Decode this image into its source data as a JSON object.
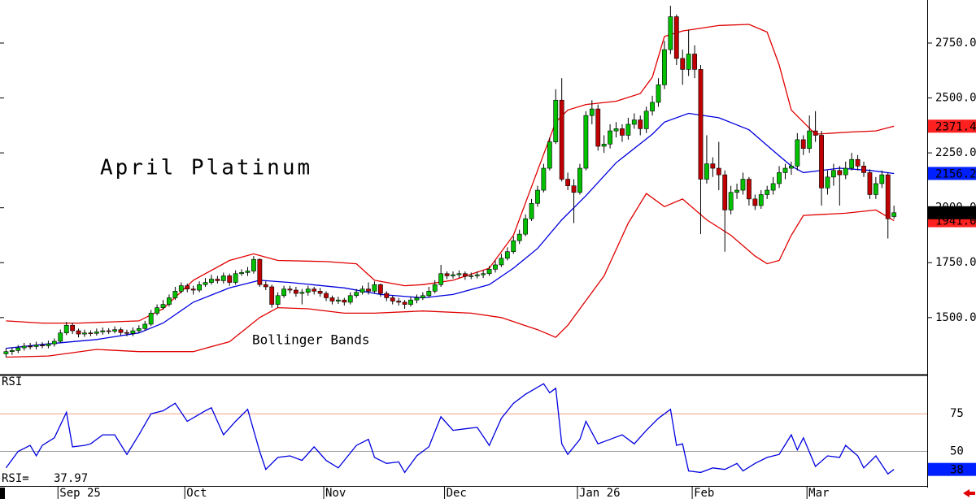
{
  "chart_data": [
    {
      "type": "candlestick",
      "title": "April Platinum",
      "annotation": "Bollinger Bands",
      "xlim": [
        -1,
        152.5
      ],
      "ylim": [
        1244,
        2946
      ],
      "yticks": [
        {
          "value": 2750,
          "label": "2750.0"
        },
        {
          "value": 2500,
          "label": "2500.0"
        },
        {
          "value": 2250,
          "label": "2250.0"
        },
        {
          "value": 2000,
          "label": "2000.0"
        },
        {
          "value": 1750,
          "label": "1750.0"
        },
        {
          "value": 1500,
          "label": "1500.0"
        }
      ],
      "up_color": "#00c000",
      "down_color": "#c00000",
      "open": [
        1335,
        1345,
        1350,
        1362,
        1370,
        1368,
        1375,
        1372,
        1380,
        1392,
        1430,
        1465,
        1440,
        1425,
        1430,
        1428,
        1435,
        1440,
        1438,
        1445,
        1432,
        1428,
        1440,
        1450,
        1470,
        1520,
        1545,
        1560,
        1590,
        1620,
        1645,
        1630,
        1625,
        1650,
        1660,
        1675,
        1668,
        1690,
        1660,
        1700,
        1705,
        1712,
        1765,
        1650,
        1640,
        1560,
        1600,
        1630,
        1625,
        1610,
        1615,
        1630,
        1620,
        1610,
        1590,
        1575,
        1580,
        1570,
        1600,
        1615,
        1630,
        1620,
        1650,
        1610,
        1590,
        1575,
        1570,
        1560,
        1580,
        1590,
        1600,
        1620,
        1650,
        1700,
        1690,
        1695,
        1700,
        1688,
        1690,
        1695,
        1700,
        1720,
        1740,
        1770,
        1800,
        1850,
        1880,
        1950,
        2020,
        2080,
        2180,
        2300,
        2490,
        2130,
        2100,
        2070,
        2180,
        2420,
        2450,
        2280,
        2290,
        2350,
        2360,
        2330,
        2380,
        2400,
        2360,
        2440,
        2480,
        2560,
        2720,
        2870,
        2680,
        2630,
        2700,
        2630,
        2130,
        2200,
        2180,
        2150,
        1990,
        2070,
        2080,
        2130,
        2040,
        2010,
        2060,
        2080,
        2110,
        2160,
        2180,
        2190,
        2310,
        2270,
        2350,
        2330,
        2090,
        2140,
        2170,
        2150,
        2180,
        2220,
        2190,
        2160,
        2060,
        2110,
        2150,
        1960
      ],
      "high": [
        1360,
        1365,
        1375,
        1385,
        1385,
        1390,
        1388,
        1395,
        1405,
        1445,
        1480,
        1475,
        1450,
        1445,
        1442,
        1450,
        1455,
        1452,
        1460,
        1455,
        1445,
        1455,
        1465,
        1485,
        1535,
        1560,
        1580,
        1605,
        1640,
        1660,
        1655,
        1645,
        1665,
        1680,
        1695,
        1690,
        1705,
        1700,
        1715,
        1720,
        1730,
        1780,
        1770,
        1665,
        1650,
        1615,
        1645,
        1645,
        1640,
        1630,
        1645,
        1640,
        1635,
        1620,
        1600,
        1595,
        1590,
        1615,
        1630,
        1645,
        1660,
        1665,
        1655,
        1620,
        1600,
        1590,
        1580,
        1595,
        1605,
        1615,
        1640,
        1670,
        1740,
        1710,
        1710,
        1715,
        1710,
        1705,
        1710,
        1715,
        1735,
        1760,
        1790,
        1820,
        1870,
        1900,
        1970,
        2040,
        2100,
        2200,
        2320,
        2540,
        2590,
        2160,
        2130,
        2200,
        2440,
        2490,
        2470,
        2330,
        2380,
        2390,
        2380,
        2410,
        2430,
        2420,
        2460,
        2510,
        2590,
        2760,
        2920,
        2880,
        2720,
        2810,
        2740,
        2650,
        2330,
        2230,
        2300,
        2170,
        2100,
        2110,
        2160,
        2140,
        2060,
        2080,
        2100,
        2140,
        2190,
        2200,
        2210,
        2340,
        2330,
        2420,
        2440,
        2350,
        2170,
        2200,
        2190,
        2210,
        2250,
        2240,
        2210,
        2175,
        2140,
        2170,
        2160,
        2010
      ],
      "low": [
        1320,
        1330,
        1338,
        1350,
        1355,
        1355,
        1360,
        1360,
        1368,
        1385,
        1420,
        1425,
        1410,
        1412,
        1415,
        1418,
        1422,
        1425,
        1428,
        1420,
        1415,
        1415,
        1430,
        1440,
        1462,
        1510,
        1535,
        1550,
        1580,
        1610,
        1615,
        1605,
        1615,
        1640,
        1650,
        1655,
        1655,
        1645,
        1650,
        1690,
        1690,
        1700,
        1640,
        1625,
        1545,
        1545,
        1590,
        1610,
        1595,
        1560,
        1600,
        1605,
        1595,
        1575,
        1560,
        1562,
        1555,
        1560,
        1590,
        1605,
        1605,
        1610,
        1595,
        1575,
        1560,
        1555,
        1540,
        1550,
        1565,
        1580,
        1590,
        1610,
        1640,
        1675,
        1678,
        1680,
        1672,
        1675,
        1678,
        1680,
        1690,
        1705,
        1730,
        1760,
        1790,
        1835,
        1870,
        1940,
        2005,
        2070,
        2170,
        2290,
        2120,
        2080,
        1930,
        2060,
        2170,
        2380,
        2260,
        2250,
        2270,
        2320,
        2300,
        2310,
        2360,
        2330,
        2340,
        2420,
        2460,
        2540,
        2700,
        2650,
        2560,
        2600,
        2590,
        1880,
        2110,
        2140,
        2080,
        1800,
        1970,
        2040,
        2060,
        2010,
        1990,
        1995,
        2040,
        2060,
        2090,
        2130,
        2150,
        2170,
        2240,
        2250,
        2300,
        2010,
        2060,
        2100,
        2010,
        2130,
        2170,
        2170,
        2140,
        2040,
        2040,
        2090,
        1860,
        1950
      ],
      "close": [
        1345,
        1350,
        1362,
        1370,
        1368,
        1375,
        1372,
        1380,
        1392,
        1430,
        1465,
        1440,
        1425,
        1430,
        1428,
        1435,
        1440,
        1438,
        1445,
        1432,
        1428,
        1440,
        1450,
        1470,
        1520,
        1545,
        1560,
        1590,
        1620,
        1645,
        1630,
        1625,
        1650,
        1660,
        1675,
        1668,
        1690,
        1660,
        1700,
        1705,
        1712,
        1765,
        1650,
        1640,
        1560,
        1600,
        1630,
        1625,
        1610,
        1615,
        1630,
        1620,
        1610,
        1590,
        1575,
        1580,
        1570,
        1600,
        1615,
        1630,
        1620,
        1650,
        1610,
        1590,
        1575,
        1570,
        1560,
        1580,
        1590,
        1600,
        1620,
        1650,
        1700,
        1690,
        1695,
        1700,
        1688,
        1690,
        1695,
        1700,
        1720,
        1740,
        1770,
        1800,
        1850,
        1880,
        1950,
        2020,
        2080,
        2180,
        2300,
        2490,
        2130,
        2100,
        2070,
        2180,
        2420,
        2450,
        2280,
        2290,
        2350,
        2360,
        2330,
        2380,
        2400,
        2360,
        2440,
        2480,
        2560,
        2720,
        2870,
        2680,
        2630,
        2700,
        2630,
        2130,
        2200,
        2180,
        2150,
        1990,
        2070,
        2080,
        2130,
        2040,
        2010,
        2060,
        2080,
        2110,
        2160,
        2180,
        2190,
        2310,
        2270,
        2350,
        2330,
        2090,
        2140,
        2170,
        2150,
        2180,
        2220,
        2190,
        2160,
        2060,
        2110,
        2150,
        1950,
        1977.3
      ],
      "bands": [
        {
          "color": "#e00000",
          "x": [
            0,
            6,
            12,
            22,
            26,
            31,
            37,
            41,
            45,
            53,
            58,
            61,
            66,
            69,
            74,
            80,
            84,
            88,
            91,
            93,
            96,
            101,
            105,
            107,
            109,
            112,
            118,
            123,
            126,
            128,
            130,
            134,
            140,
            144,
            147
          ],
          "values": [
            1485,
            1475,
            1475,
            1485,
            1540,
            1670,
            1760,
            1790,
            1760,
            1755,
            1745,
            1670,
            1645,
            1650,
            1670,
            1725,
            1875,
            2170,
            2390,
            2445,
            2470,
            2485,
            2520,
            2595,
            2780,
            2805,
            2830,
            2835,
            2800,
            2650,
            2445,
            2335,
            2345,
            2350,
            2371.4
          ]
        },
        {
          "color": "#0000e0",
          "x": [
            0,
            7,
            15,
            22,
            26,
            31,
            37,
            42,
            47,
            56,
            62,
            69,
            74,
            80,
            84,
            88,
            92,
            96,
            101,
            107,
            109,
            113,
            118,
            123,
            127,
            130,
            132,
            138,
            143,
            147
          ],
          "values": [
            1360,
            1380,
            1400,
            1430,
            1475,
            1570,
            1635,
            1670,
            1660,
            1635,
            1605,
            1590,
            1605,
            1650,
            1725,
            1815,
            1945,
            2055,
            2205,
            2335,
            2390,
            2430,
            2410,
            2355,
            2260,
            2190,
            2160,
            2180,
            2170,
            2156.2
          ]
        },
        {
          "color": "#e00000",
          "x": [
            0,
            7,
            15,
            22,
            31,
            37,
            42,
            45,
            50,
            56,
            61,
            69,
            77,
            82,
            88,
            91,
            93,
            99,
            103,
            106,
            109,
            112,
            116,
            120,
            124,
            126,
            128,
            130,
            132,
            139,
            144,
            147
          ],
          "values": [
            1320,
            1325,
            1355,
            1345,
            1345,
            1390,
            1500,
            1545,
            1540,
            1520,
            1520,
            1530,
            1520,
            1500,
            1445,
            1410,
            1465,
            1690,
            1930,
            2065,
            2005,
            2040,
            1945,
            1875,
            1780,
            1745,
            1760,
            1875,
            1965,
            1975,
            1990,
            1941
          ]
        }
      ],
      "last_labels": [
        {
          "value": 2371.4,
          "color": "#ff2020"
        },
        {
          "value": 2156.2,
          "color": "#0020ff"
        },
        {
          "value": 1941,
          "label": "1941.0",
          "color": "#ff2020"
        },
        {
          "value": 1977.3,
          "color": "#000000"
        }
      ]
    },
    {
      "type": "line",
      "title": "RSI",
      "readout_label": "RSI=",
      "readout_value": 37.97,
      "xlim": [
        -1,
        152.5
      ],
      "ylim": [
        27,
        100
      ],
      "yticks": [
        75,
        50
      ],
      "grid_colors": [
        "#f0a080",
        "#a0a0a0"
      ],
      "xticks": [
        {
          "value": 9,
          "label": "Sep 25"
        },
        {
          "value": 30,
          "label": "Oct"
        },
        {
          "value": 53,
          "label": "Nov"
        },
        {
          "value": 73,
          "label": "Dec"
        },
        {
          "value": 95,
          "label": "Jan 26"
        },
        {
          "value": 114,
          "label": "Feb"
        },
        {
          "value": 133,
          "label": "Mar"
        }
      ],
      "color": "#0000e0",
      "x": [
        0,
        2,
        4,
        5,
        6,
        8,
        10,
        11,
        13,
        14,
        16,
        18,
        20,
        22,
        24,
        26,
        28,
        30,
        33,
        34,
        36,
        38,
        40,
        42,
        43,
        45,
        47,
        49,
        51,
        53,
        55,
        56,
        58,
        60,
        61,
        63,
        65,
        66,
        68,
        70,
        72,
        74,
        76,
        78,
        80,
        82,
        84,
        86,
        89,
        90,
        91,
        92,
        93,
        95,
        96,
        98,
        100,
        102,
        104,
        106,
        108,
        110,
        111,
        112,
        113,
        115,
        117,
        119,
        121,
        122,
        124,
        126,
        128,
        130,
        131,
        132,
        134,
        136,
        138,
        139,
        141,
        142,
        144,
        146,
        147
      ],
      "values": [
        39,
        50,
        54,
        47,
        54,
        59,
        76,
        53,
        54,
        55,
        61,
        61,
        48,
        61,
        75,
        77,
        82,
        70,
        77,
        79,
        61,
        70,
        78,
        50,
        38,
        46,
        47,
        44,
        53,
        44,
        39,
        44,
        54,
        58,
        46,
        42,
        43,
        36,
        47,
        53,
        73,
        64,
        65,
        66,
        54,
        72,
        82,
        88,
        95,
        89,
        92,
        55,
        48,
        58,
        70,
        55,
        58,
        61,
        55,
        64,
        72,
        78,
        54,
        55,
        37,
        36,
        39,
        38,
        42,
        37,
        42,
        46,
        48,
        61,
        51,
        59,
        40,
        47,
        46,
        54,
        47,
        39,
        47,
        35,
        37.97
      ],
      "last_label": {
        "value": 38,
        "color": "#0020ff"
      }
    }
  ]
}
